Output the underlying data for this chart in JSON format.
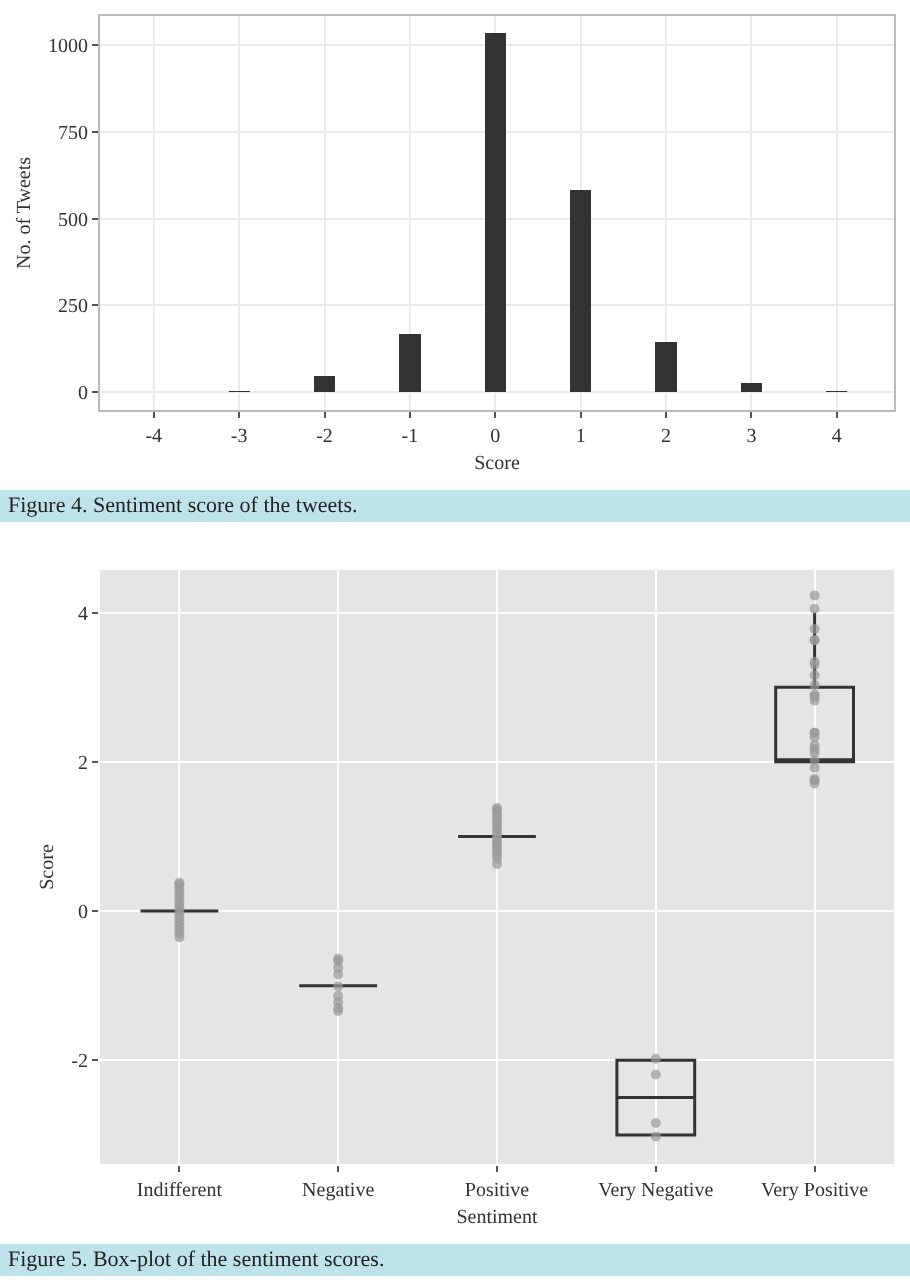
{
  "chart_data": [
    {
      "type": "bar",
      "xlabel": "Score",
      "ylabel": "No. of Tweets",
      "color": "#333333",
      "x": [
        -3,
        -2,
        -1,
        0,
        1,
        2,
        3,
        4
      ],
      "values": [
        3,
        45,
        166,
        1036,
        583,
        145,
        26,
        3
      ],
      "xlim": [
        -4.63,
        4.67
      ],
      "xticks": [
        -4,
        -3,
        -2,
        -1,
        0,
        1,
        2,
        3,
        4
      ],
      "ylim": [
        -52,
        1085
      ],
      "yticks": [
        0,
        250,
        500,
        750,
        1000
      ],
      "grid": true,
      "annotations": [
        "Figure 4. Sentiment score of the tweets."
      ]
    },
    {
      "type": "box",
      "xlabel": "Sentiment",
      "ylabel": "Score",
      "categories": [
        "Indifferent",
        "Negative",
        "Positive",
        "Very Negative",
        "Very Positive"
      ],
      "ylim": [
        -3.39,
        4.57
      ],
      "yticks": [
        -2,
        0,
        2,
        4
      ],
      "grid": true,
      "series": [
        {
          "type": "box",
          "color": "#333333",
          "boxes": [
            {
              "low": 0,
              "q1": 0,
              "median": 0,
              "q3": 0,
              "high": 0
            },
            {
              "low": -1,
              "q1": -1,
              "median": -1,
              "q3": -1,
              "high": -1
            },
            {
              "low": 1,
              "q1": 1,
              "median": 1,
              "q3": 1,
              "high": 1
            },
            {
              "low": -3,
              "q1": -3,
              "median": -2.5,
              "q3": -2,
              "high": -2
            },
            {
              "low": 2,
              "q1": 2,
              "median": 2,
              "q3": 3,
              "high": 4
            }
          ]
        },
        {
          "type": "scatter",
          "color": "#999999",
          "marker": "circle",
          "x": [
            "Indifferent",
            "Indifferent",
            "Indifferent",
            "Indifferent",
            "Indifferent",
            "Indifferent",
            "Indifferent",
            "Indifferent",
            "Indifferent",
            "Indifferent",
            "Indifferent",
            "Indifferent",
            "Indifferent",
            "Indifferent",
            "Indifferent",
            "Indifferent",
            "Negative",
            "Negative",
            "Negative",
            "Negative",
            "Negative",
            "Negative",
            "Negative",
            "Negative",
            "Negative",
            "Positive",
            "Positive",
            "Positive",
            "Positive",
            "Positive",
            "Positive",
            "Positive",
            "Positive",
            "Positive",
            "Positive",
            "Positive",
            "Positive",
            "Positive",
            "Positive",
            "Positive",
            "Positive",
            "Very Negative",
            "Very Negative",
            "Very Negative",
            "Very Negative",
            "Very Positive",
            "Very Positive",
            "Very Positive",
            "Very Positive",
            "Very Positive",
            "Very Positive",
            "Very Positive",
            "Very Positive",
            "Very Positive",
            "Very Positive",
            "Very Positive",
            "Very Positive",
            "Very Positive",
            "Very Positive",
            "Very Positive",
            "Very Positive",
            "Very Positive",
            "Very Positive",
            "Very Positive",
            "Very Positive",
            "Very Positive",
            "Very Positive",
            "Very Positive"
          ],
          "values": [
            0.38,
            0.35,
            0.3,
            0.25,
            0.2,
            0.15,
            0.1,
            0.05,
            0,
            -0.05,
            -0.1,
            -0.15,
            -0.2,
            -0.25,
            -0.3,
            -0.35,
            -0.64,
            -0.67,
            -0.76,
            -0.85,
            -1.01,
            -1.14,
            -1.22,
            -1.3,
            -1.34,
            1.38,
            1.35,
            1.3,
            1.25,
            1.2,
            1.15,
            1.1,
            1.05,
            1,
            0.95,
            0.9,
            0.85,
            0.8,
            0.75,
            0.7,
            0.63,
            -1.98,
            -2.19,
            -2.84,
            -3.02,
            4.23,
            4.05,
            3.78,
            3.63,
            3.63,
            3.34,
            3.3,
            3.16,
            3.03,
            2.9,
            2.87,
            2.82,
            2.39,
            2.39,
            2.33,
            2.22,
            2.17,
            2.12,
            2.02,
            1.92,
            1.77,
            1.75,
            1.71
          ]
        }
      ],
      "annotations": [
        "Figure 5. Box-plot of the sentiment scores."
      ]
    }
  ]
}
